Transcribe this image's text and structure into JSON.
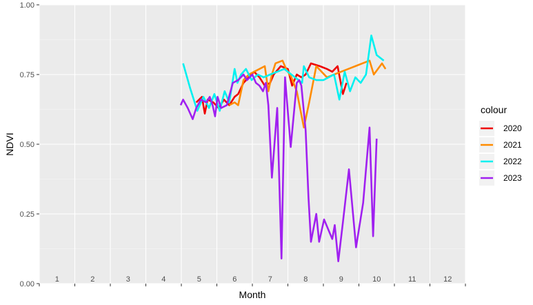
{
  "chart_data": {
    "type": "line",
    "xlabel": "Month",
    "ylabel": "NDVI",
    "xlim": [
      0.5,
      12.5
    ],
    "ylim": [
      0,
      1
    ],
    "x_ticks": [
      1,
      2,
      3,
      4,
      5,
      6,
      7,
      8,
      9,
      10,
      11,
      12
    ],
    "x_tick_labels": [
      "1",
      "2",
      "3",
      "4",
      "5",
      "6",
      "7",
      "8",
      "9",
      "10",
      "11",
      "12"
    ],
    "y_ticks": [
      0,
      0.25,
      0.5,
      0.75,
      1
    ],
    "y_tick_labels": [
      "0.00",
      "0.25",
      "0.50",
      "0.75",
      "1.00"
    ],
    "grid": true,
    "legend": {
      "title": "colour",
      "position": "right"
    },
    "series": [
      {
        "name": "2020",
        "color": "#ee0000",
        "points": [
          [
            4.92,
            0.65
          ],
          [
            5.08,
            0.67
          ],
          [
            5.16,
            0.61
          ],
          [
            5.24,
            0.66
          ],
          [
            5.4,
            0.65
          ],
          [
            5.55,
            0.63
          ],
          [
            5.7,
            0.66
          ],
          [
            5.85,
            0.64
          ],
          [
            6.0,
            0.67
          ],
          [
            6.1,
            0.68
          ],
          [
            6.25,
            0.72
          ],
          [
            6.4,
            0.74
          ],
          [
            6.55,
            0.76
          ],
          [
            6.7,
            0.74
          ],
          [
            6.85,
            0.71
          ],
          [
            7.0,
            0.72
          ],
          [
            7.1,
            0.75
          ],
          [
            7.3,
            0.78
          ],
          [
            7.5,
            0.77
          ],
          [
            7.62,
            0.71
          ],
          [
            7.75,
            0.75
          ],
          [
            7.88,
            0.74
          ],
          [
            8.0,
            0.75
          ],
          [
            8.15,
            0.79
          ],
          [
            8.4,
            0.78
          ],
          [
            8.6,
            0.77
          ],
          [
            8.75,
            0.76
          ],
          [
            8.9,
            0.78
          ],
          [
            9.05,
            0.68
          ],
          [
            9.15,
            0.72
          ]
        ]
      },
      {
        "name": "2021",
        "color": "#ff8c00",
        "points": [
          [
            5.85,
            0.64
          ],
          [
            6.0,
            0.65
          ],
          [
            6.1,
            0.64
          ],
          [
            6.25,
            0.73
          ],
          [
            6.4,
            0.75
          ],
          [
            6.55,
            0.76
          ],
          [
            6.7,
            0.77
          ],
          [
            6.85,
            0.78
          ],
          [
            6.95,
            0.69
          ],
          [
            7.05,
            0.75
          ],
          [
            7.15,
            0.79
          ],
          [
            7.35,
            0.8
          ],
          [
            7.45,
            0.77
          ],
          [
            7.6,
            0.74
          ],
          [
            7.75,
            0.69
          ],
          [
            7.95,
            0.56
          ],
          [
            8.1,
            0.65
          ],
          [
            8.3,
            0.78
          ],
          [
            8.6,
            0.74
          ],
          [
            9.0,
            0.76
          ],
          [
            9.4,
            0.78
          ],
          [
            9.8,
            0.8
          ],
          [
            9.92,
            0.75
          ],
          [
            10.15,
            0.79
          ],
          [
            10.25,
            0.77
          ]
        ]
      },
      {
        "name": "2022",
        "color": "#00f0f0",
        "points": [
          [
            4.55,
            0.79
          ],
          [
            4.75,
            0.7
          ],
          [
            4.95,
            0.62
          ],
          [
            5.12,
            0.67
          ],
          [
            5.28,
            0.63
          ],
          [
            5.43,
            0.68
          ],
          [
            5.58,
            0.62
          ],
          [
            5.72,
            0.69
          ],
          [
            5.85,
            0.65
          ],
          [
            6.0,
            0.77
          ],
          [
            6.08,
            0.72
          ],
          [
            6.18,
            0.75
          ],
          [
            6.32,
            0.77
          ],
          [
            6.48,
            0.73
          ],
          [
            6.65,
            0.75
          ],
          [
            6.82,
            0.74
          ],
          [
            7.0,
            0.75
          ],
          [
            7.2,
            0.76
          ],
          [
            7.4,
            0.77
          ],
          [
            7.6,
            0.75
          ],
          [
            7.8,
            0.73
          ],
          [
            7.9,
            0.72
          ],
          [
            7.95,
            0.78
          ],
          [
            8.1,
            0.74
          ],
          [
            8.3,
            0.73
          ],
          [
            8.5,
            0.73
          ],
          [
            8.8,
            0.75
          ],
          [
            8.95,
            0.66
          ],
          [
            9.1,
            0.76
          ],
          [
            9.25,
            0.69
          ],
          [
            9.4,
            0.74
          ],
          [
            9.55,
            0.72
          ],
          [
            9.7,
            0.75
          ],
          [
            9.85,
            0.89
          ],
          [
            10.0,
            0.82
          ],
          [
            10.2,
            0.8
          ]
        ]
      },
      {
        "name": "2023",
        "color": "#a020f0",
        "points": [
          [
            4.48,
            0.64
          ],
          [
            4.55,
            0.66
          ],
          [
            4.68,
            0.63
          ],
          [
            4.82,
            0.59
          ],
          [
            4.92,
            0.63
          ],
          [
            5.05,
            0.66
          ],
          [
            5.2,
            0.65
          ],
          [
            5.3,
            0.67
          ],
          [
            5.38,
            0.64
          ],
          [
            5.45,
            0.6
          ],
          [
            5.52,
            0.67
          ],
          [
            5.62,
            0.63
          ],
          [
            5.78,
            0.64
          ],
          [
            5.95,
            0.72
          ],
          [
            6.1,
            0.73
          ],
          [
            6.25,
            0.75
          ],
          [
            6.35,
            0.73
          ],
          [
            6.5,
            0.75
          ],
          [
            6.6,
            0.72
          ],
          [
            6.7,
            0.71
          ],
          [
            6.8,
            0.69
          ],
          [
            6.88,
            0.72
          ],
          [
            6.95,
            0.64
          ],
          [
            7.05,
            0.38
          ],
          [
            7.2,
            0.63
          ],
          [
            7.32,
            0.09
          ],
          [
            7.42,
            0.74
          ],
          [
            7.58,
            0.49
          ],
          [
            7.75,
            0.72
          ],
          [
            7.82,
            0.73
          ],
          [
            7.88,
            0.71
          ],
          [
            8.0,
            0.55
          ],
          [
            8.08,
            0.31
          ],
          [
            8.15,
            0.15
          ],
          [
            8.3,
            0.25
          ],
          [
            8.38,
            0.15
          ],
          [
            8.52,
            0.23
          ],
          [
            8.75,
            0.16
          ],
          [
            8.82,
            0.21
          ],
          [
            8.92,
            0.08
          ],
          [
            9.05,
            0.22
          ],
          [
            9.22,
            0.41
          ],
          [
            9.42,
            0.13
          ],
          [
            9.62,
            0.29
          ],
          [
            9.8,
            0.56
          ],
          [
            9.9,
            0.17
          ],
          [
            10.0,
            0.52
          ]
        ]
      }
    ]
  }
}
